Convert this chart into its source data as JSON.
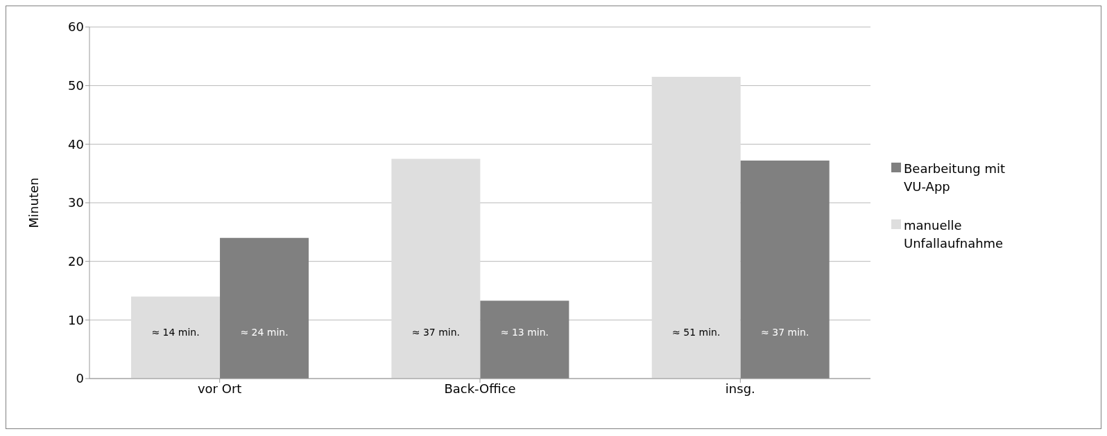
{
  "chart_data": {
    "type": "bar",
    "ylabel": "Minuten",
    "categories": [
      "vor Ort",
      "Back-Office",
      "insg."
    ],
    "series": [
      {
        "name": "manuelle Unfallaufnahme",
        "color": "#dedede",
        "values": [
          14,
          37.5,
          51.5
        ],
        "value_labels": [
          "≈ 14 min.",
          "≈ 37 min.",
          "≈ 51 min."
        ]
      },
      {
        "name": "Bearbeitung mit VU-App",
        "color": "#808080",
        "values": [
          24,
          13.3,
          37.2
        ],
        "value_labels": [
          "≈ 24 min.",
          "≈ 13 min.",
          "≈ 37 min."
        ]
      }
    ],
    "ylim": [
      0,
      60
    ],
    "yticks": [
      0,
      10,
      20,
      30,
      40,
      50,
      60
    ],
    "grid": "y",
    "legend": "right"
  }
}
